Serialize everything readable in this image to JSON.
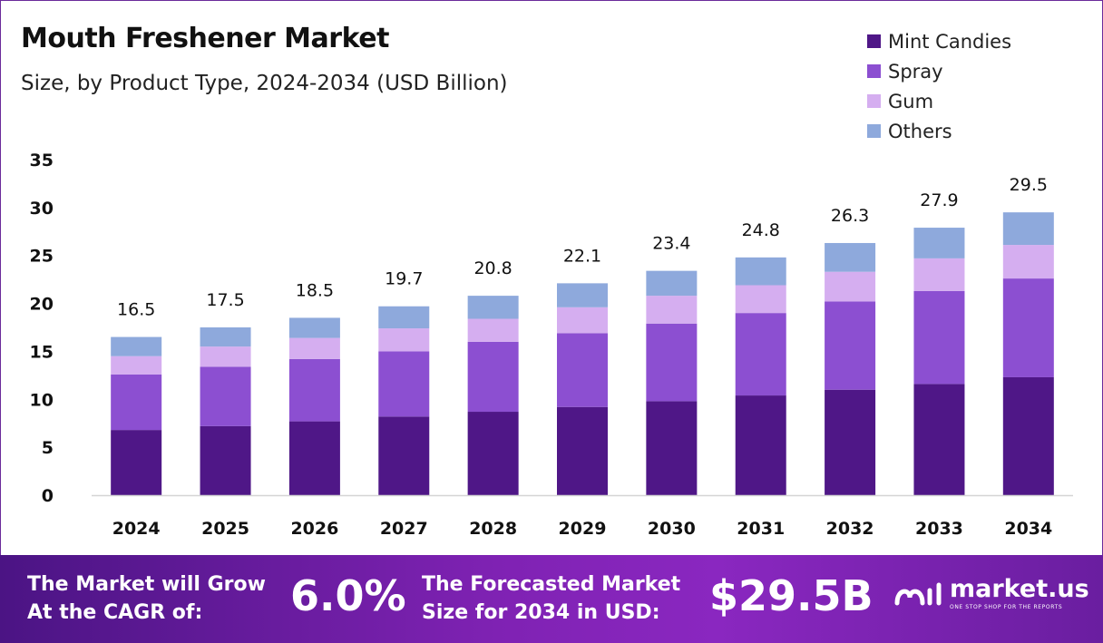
{
  "header": {
    "title": "Mouth Freshener Market",
    "subtitle": "Size, by Product Type, 2024-2034 (USD Billion)"
  },
  "colors": {
    "mint_candies": "#4f1787",
    "spray": "#8c4fd1",
    "gum": "#d5aef0",
    "others": "#8ea9dc",
    "accent": "#7f22b3"
  },
  "chart_data": {
    "type": "bar",
    "stacked": true,
    "categories": [
      "2024",
      "2025",
      "2026",
      "2027",
      "2028",
      "2029",
      "2030",
      "2031",
      "2032",
      "2033",
      "2034"
    ],
    "series": [
      {
        "name": "Mint Candies",
        "color_key": "mint_candies",
        "values": [
          6.8,
          7.2,
          7.7,
          8.2,
          8.7,
          9.2,
          9.8,
          10.4,
          11.0,
          11.6,
          12.3
        ]
      },
      {
        "name": "Spray",
        "color_key": "spray",
        "values": [
          5.8,
          6.2,
          6.5,
          6.8,
          7.3,
          7.7,
          8.1,
          8.6,
          9.2,
          9.7,
          10.3
        ]
      },
      {
        "name": "Gum",
        "color_key": "gum",
        "values": [
          1.9,
          2.1,
          2.2,
          2.4,
          2.4,
          2.7,
          2.9,
          2.9,
          3.1,
          3.4,
          3.5
        ]
      },
      {
        "name": "Others",
        "color_key": "others",
        "values": [
          2.0,
          2.0,
          2.1,
          2.3,
          2.4,
          2.5,
          2.6,
          2.9,
          3.0,
          3.2,
          3.4
        ]
      }
    ],
    "totals": [
      "16.5",
      "17.5",
      "18.5",
      "19.7",
      "20.8",
      "22.1",
      "23.4",
      "24.8",
      "26.3",
      "27.9",
      "29.5"
    ],
    "yticks": [
      "0",
      "5",
      "10",
      "15",
      "20",
      "25",
      "30",
      "35"
    ],
    "ylim": [
      0,
      35
    ],
    "legend_position": "top-right",
    "grid": false
  },
  "footer": {
    "cagr_label_line1": "The Market will Grow",
    "cagr_label_line2": "At the CAGR of:",
    "cagr_value": "6.0%",
    "forecast_label_line1": "The Forecasted Market",
    "forecast_label_line2": "Size for 2034 in USD:",
    "forecast_value": "$29.5B",
    "brand_name": "market.us",
    "brand_tagline": "ONE STOP SHOP FOR THE REPORTS"
  }
}
